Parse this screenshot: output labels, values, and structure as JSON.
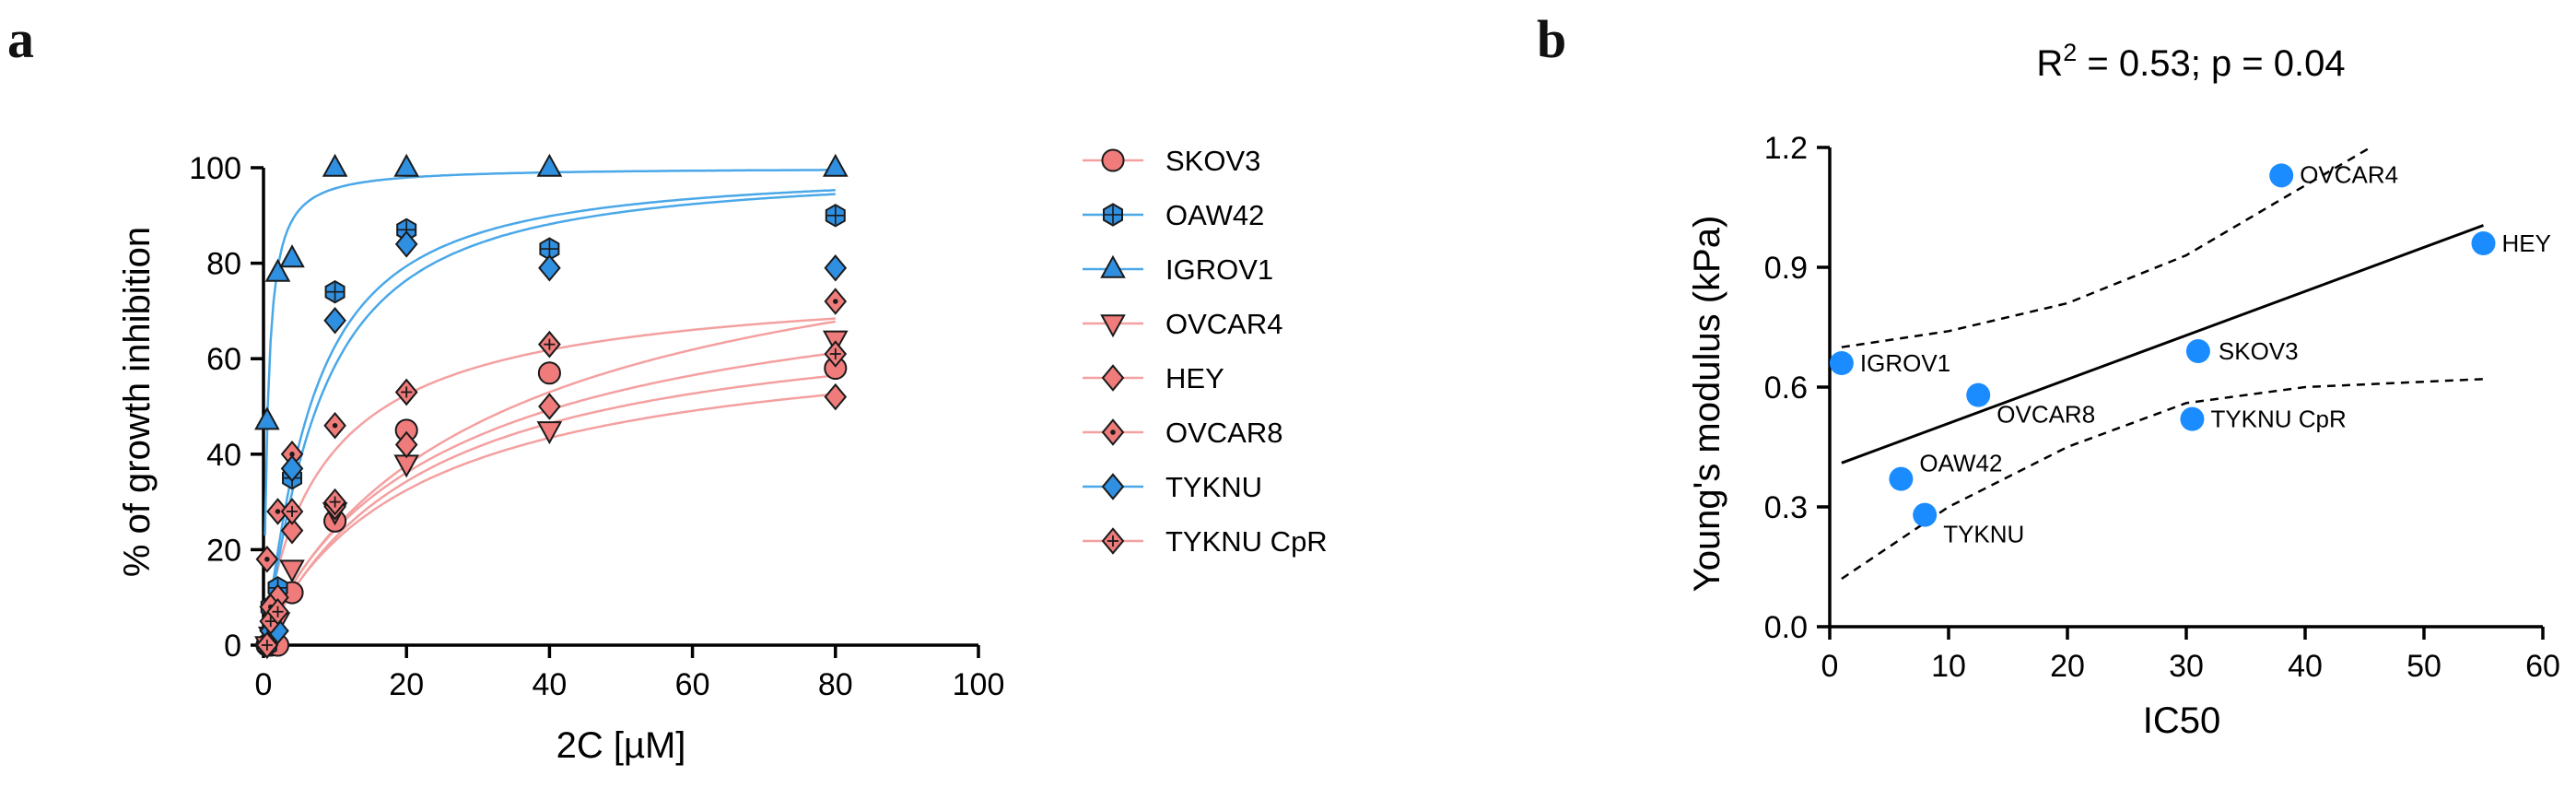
{
  "panels": {
    "a": "a",
    "b": "b"
  },
  "chart_data": [
    {
      "type": "scatter",
      "panel": "a",
      "xlabel": "2C [µM]",
      "ylabel": "% of growth inhibition",
      "xlim": [
        0,
        100
      ],
      "ylim": [
        0,
        100
      ],
      "xticks": [
        0,
        20,
        40,
        60,
        80,
        100
      ],
      "yticks": [
        0,
        20,
        40,
        60,
        80,
        100
      ],
      "legend_position": "right",
      "colors": {
        "red_fill": "#f07b7b",
        "red_line": "#f4a0a0",
        "blue_fill": "#2f8fe0",
        "blue_line": "#4aa8e8",
        "stroke": "#1a1a1a"
      },
      "series": [
        {
          "name": "SKOV3",
          "marker": "circle",
          "color_group": "red",
          "x": [
            0.5,
            1,
            2,
            4,
            10,
            20,
            40,
            80
          ],
          "y": [
            0,
            0,
            0,
            11,
            26,
            45,
            57,
            58
          ],
          "fit": {
            "top": 72,
            "ec50": 22,
            "hill": 1.0
          }
        },
        {
          "name": "OAW42",
          "marker": "hexcross",
          "color_group": "blue",
          "x": [
            0.5,
            1,
            2,
            4,
            10,
            20,
            40,
            80
          ],
          "y": [
            0,
            8,
            12,
            35,
            74,
            87,
            83,
            90
          ],
          "fit": {
            "top": 100,
            "ec50": 6.5,
            "hill": 1.2
          }
        },
        {
          "name": "IGROV1",
          "marker": "triangle-up",
          "color_group": "blue",
          "x": [
            0.5,
            2,
            4,
            10,
            20,
            40,
            80
          ],
          "y": [
            47,
            78,
            81,
            100,
            100,
            100,
            100
          ],
          "fit": {
            "top": 100,
            "ec50": 0.6,
            "hill": 1.1
          }
        },
        {
          "name": "OVCAR4",
          "marker": "triangle-down",
          "color_group": "red",
          "x": [
            0.5,
            1,
            2,
            4,
            10,
            20,
            40,
            80
          ],
          "y": [
            0,
            2,
            5,
            16,
            28,
            38,
            45,
            64
          ],
          "fit": {
            "top": 85,
            "ec50": 28,
            "hill": 0.9
          }
        },
        {
          "name": "HEY",
          "marker": "diamond",
          "color_group": "red",
          "x": [
            0.5,
            1,
            2,
            4,
            10,
            20,
            40,
            80
          ],
          "y": [
            0,
            3,
            10,
            24,
            29,
            42,
            50,
            52
          ],
          "fit": {
            "top": 68,
            "ec50": 22,
            "hill": 0.95
          }
        },
        {
          "name": "OVCAR8",
          "marker": "diamond-dot",
          "color_group": "red",
          "x": [
            0.5,
            1,
            2,
            4,
            10,
            20,
            40,
            80
          ],
          "y": [
            18,
            8,
            28,
            40,
            46,
            53,
            63,
            72
          ],
          "fit": {
            "top": 78,
            "ec50": 9,
            "hill": 0.9
          }
        },
        {
          "name": "TYKNU",
          "marker": "diamond",
          "color_group": "blue",
          "x": [
            0.5,
            1,
            2,
            4,
            10,
            20,
            40,
            80
          ],
          "y": [
            0,
            3,
            3,
            37,
            68,
            84,
            79,
            79
          ],
          "fit": {
            "top": 100,
            "ec50": 7.5,
            "hill": 1.2
          }
        },
        {
          "name": "TYKNU CpR",
          "marker": "diamond-plus",
          "color_group": "red",
          "x": [
            0.5,
            1,
            2,
            4,
            10,
            20,
            40,
            80
          ],
          "y": [
            0,
            5,
            7,
            28,
            30,
            53,
            63,
            61
          ],
          "fit": {
            "top": 100,
            "ec50": 35,
            "hill": 0.9
          }
        }
      ]
    },
    {
      "type": "scatter",
      "panel": "b",
      "title_main": "R",
      "title_sup": "2",
      "title_rest": " = 0.53; p = 0.04",
      "xlabel": "IC50",
      "ylabel": "Young's modulus (kPa)",
      "xlim": [
        0,
        60
      ],
      "ylim": [
        0,
        1.2
      ],
      "xticks": [
        0,
        10,
        20,
        30,
        40,
        50,
        60
      ],
      "yticks": [
        "0.0",
        "0.3",
        "0.6",
        "0.9",
        "1.2"
      ],
      "point_color": "#1a8cff",
      "points": [
        {
          "label": "OVCAR4",
          "x": 38,
          "y": 1.13
        },
        {
          "label": "HEY",
          "x": 55,
          "y": 0.96
        },
        {
          "label": "SKOV3",
          "x": 31,
          "y": 0.69
        },
        {
          "label": "IGROV1",
          "x": 1,
          "y": 0.66
        },
        {
          "label": "OVCAR8",
          "x": 12.5,
          "y": 0.58
        },
        {
          "label": "TYKNU CpR",
          "x": 30.5,
          "y": 0.52
        },
        {
          "label": "OAW42",
          "x": 6,
          "y": 0.37
        },
        {
          "label": "TYKNU",
          "x": 8,
          "y": 0.28
        }
      ],
      "regression": {
        "x": [
          1,
          55
        ],
        "y": [
          0.41,
          1.005
        ]
      },
      "ci_upper": {
        "x": [
          1,
          10,
          20,
          30,
          38,
          45.5
        ],
        "y": [
          0.7,
          0.74,
          0.81,
          0.93,
          1.07,
          1.2
        ]
      },
      "ci_lower": {
        "x": [
          1,
          10,
          20,
          30,
          40,
          55
        ],
        "y": [
          0.12,
          0.3,
          0.45,
          0.56,
          0.6,
          0.62
        ]
      }
    }
  ]
}
